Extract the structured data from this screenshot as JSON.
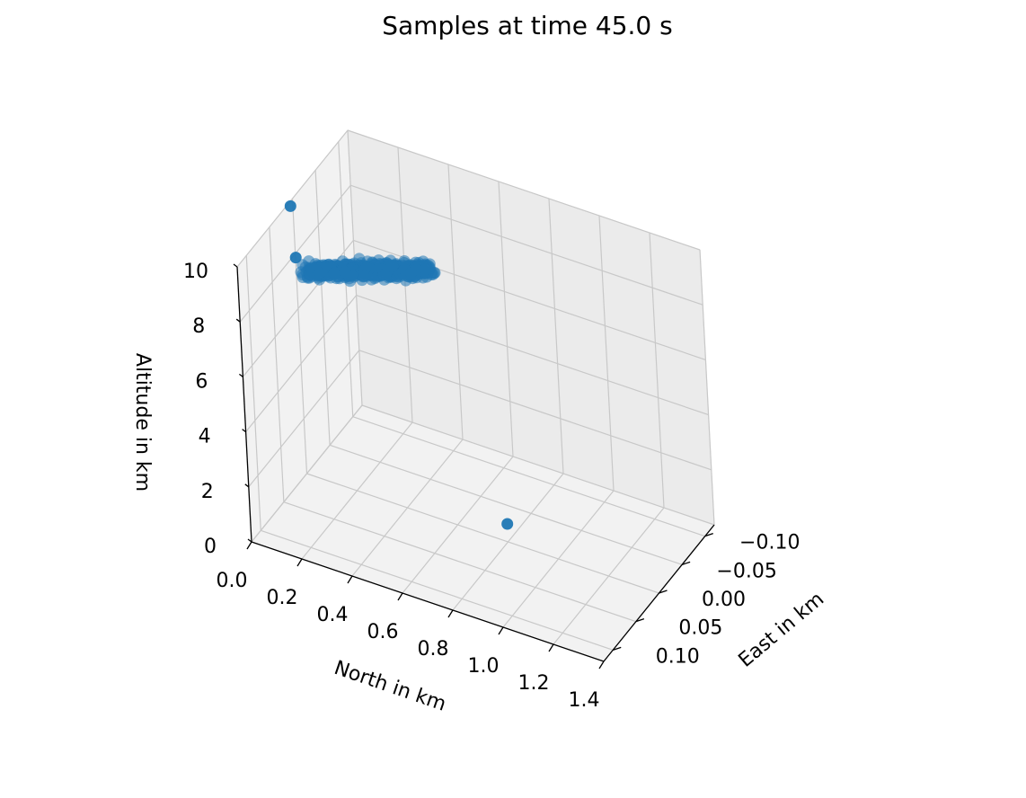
{
  "chart_data": {
    "type": "scatter",
    "projection": "3d",
    "title": "Samples at time 45.0 s",
    "xlabel": "North in km",
    "ylabel": "East in km",
    "zlabel": "Altitude in km",
    "xlim": [
      0.0,
      1.4
    ],
    "ylim": [
      -0.12,
      0.12
    ],
    "zlim": [
      0,
      10
    ],
    "xticks": [
      "0.0",
      "0.2",
      "0.4",
      "0.6",
      "0.8",
      "1.0",
      "1.2",
      "1.4"
    ],
    "yticks": [
      "−0.10",
      "−0.05",
      "0.00",
      "0.05",
      "0.10"
    ],
    "zticks": [
      "0",
      "2",
      "4",
      "6",
      "8",
      "10"
    ],
    "grid": true,
    "color": "#1f77b4",
    "outliers": [
      {
        "north": 0.9,
        "east": 0.05,
        "alt": 2.0
      },
      {
        "north": 0.05,
        "east": 0.03,
        "alt": 10.5
      },
      {
        "north": 0.1,
        "east": 0.05,
        "alt": 9.2
      }
    ],
    "cluster": {
      "from": {
        "north": 0.4,
        "east": -0.07,
        "alt": 7.2
      },
      "to": {
        "north": 0.1,
        "east": 0.03,
        "alt": 8.3
      },
      "spread": {
        "north": 0.03,
        "east": 0.01,
        "alt": 0.12
      },
      "count": 600
    }
  }
}
